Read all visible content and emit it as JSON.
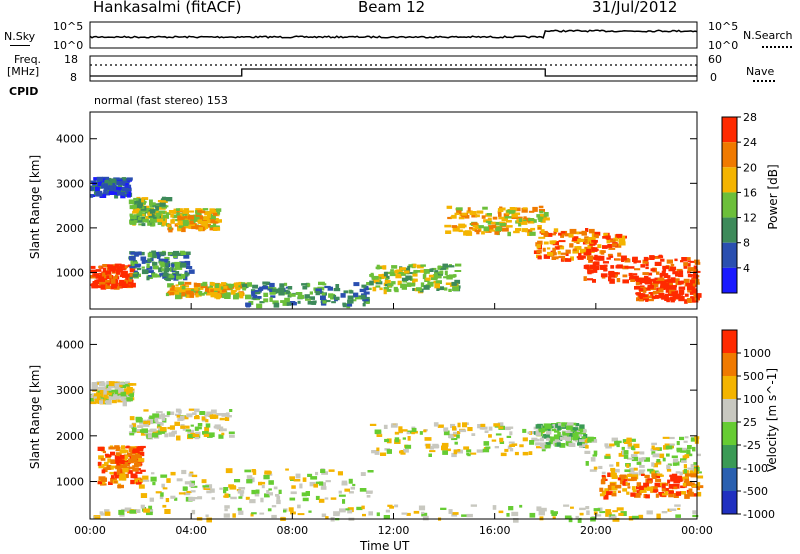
{
  "header": {
    "station": "Hankasalmi (fitACF)",
    "beam": "Beam 12",
    "date": "31/Jul/2012"
  },
  "top_panels": {
    "nsky_label": "N.Sky",
    "nsearch_label": "N.Search",
    "nsky_tick_high": "10^5",
    "nsky_tick_low": "10^0",
    "freq_label_1": "Freq.",
    "freq_label_2": "[MHz]",
    "freq_tick_high": "18",
    "freq_tick_low": "8",
    "nave_label": "Nave",
    "nave_tick_high": "60",
    "nave_tick_low": "0",
    "cpid_label": "CPID",
    "cpid_text": "normal (fast stereo) 153"
  },
  "chart_data": [
    {
      "type": "heatmap",
      "name": "power",
      "ylabel": "Slant Range [km]",
      "xlabel": "Time UT",
      "x_ticks": [
        "00:00",
        "04:00",
        "08:00",
        "12:00",
        "16:00",
        "20:00",
        "00:00"
      ],
      "xlim_hours": [
        0,
        24
      ],
      "y_ticks": [
        "1000",
        "2000",
        "3000",
        "4000"
      ],
      "ylim": [
        180,
        4600
      ],
      "colorbar_label": "Power [dB]",
      "colorbar_ticks": [
        "4",
        "8",
        "12",
        "16",
        "20",
        "24",
        "28"
      ],
      "colorbar_colors": [
        "#1a1aff",
        "#2a4fb0",
        "#3d8a5a",
        "#6cbf3a",
        "#f4b400",
        "#f07a00",
        "#ff2a00"
      ],
      "bands": [
        {
          "t0": 0.0,
          "t1": 1.5,
          "r0": 2750,
          "r1": 3150,
          "level": 1
        },
        {
          "t0": 1.5,
          "t1": 3.0,
          "r0": 2100,
          "r1": 2700,
          "level": 3
        },
        {
          "t0": 3.0,
          "t1": 5.0,
          "r0": 2000,
          "r1": 2450,
          "level": 4
        },
        {
          "t0": 0.0,
          "t1": 1.6,
          "r0": 700,
          "r1": 1200,
          "level": 6
        },
        {
          "t0": 1.5,
          "t1": 4.0,
          "r0": 900,
          "r1": 1500,
          "level": 2
        },
        {
          "t0": 3.0,
          "t1": 6.0,
          "r0": 500,
          "r1": 800,
          "level": 4
        },
        {
          "t0": 6.0,
          "t1": 11.0,
          "r0": 300,
          "r1": 800,
          "level": 2
        },
        {
          "t0": 11.0,
          "t1": 14.5,
          "r0": 600,
          "r1": 1200,
          "level": 3
        },
        {
          "t0": 14.0,
          "t1": 18.0,
          "r0": 1900,
          "r1": 2500,
          "level": 4
        },
        {
          "t0": 17.5,
          "t1": 21.0,
          "r0": 1300,
          "r1": 2000,
          "level": 5
        },
        {
          "t0": 19.5,
          "t1": 24.0,
          "r0": 800,
          "r1": 1400,
          "level": 6
        },
        {
          "t0": 21.5,
          "t1": 24.0,
          "r0": 400,
          "r1": 900,
          "level": 6
        }
      ]
    },
    {
      "type": "heatmap",
      "name": "velocity",
      "ylabel": "Slant Range [km]",
      "xlabel": "Time UT",
      "x_ticks": [
        "00:00",
        "04:00",
        "08:00",
        "12:00",
        "16:00",
        "20:00",
        "00:00"
      ],
      "xlim_hours": [
        0,
        24
      ],
      "y_ticks": [
        "1000",
        "2000",
        "3000",
        "4000"
      ],
      "ylim": [
        180,
        4600
      ],
      "colorbar_label": "Velocity [m s^-1]",
      "colorbar_ticks": [
        "1000",
        "500",
        "100",
        "25",
        "-25",
        "-100",
        "-500",
        "-1000"
      ],
      "colorbar_colors": [
        "#2030c0",
        "#2a60b0",
        "#3a9a55",
        "#66cc33",
        "#c8c8c0",
        "#f4b400",
        "#f07a00",
        "#ff2a00"
      ],
      "bands": [
        {
          "t0": 0.0,
          "t1": 1.6,
          "r0": 2750,
          "r1": 3200,
          "level": 4
        },
        {
          "t0": 1.5,
          "t1": 5.5,
          "r0": 2000,
          "r1": 2600,
          "level": 4
        },
        {
          "t0": 0.3,
          "t1": 2.0,
          "r0": 900,
          "r1": 1800,
          "level": 6
        },
        {
          "t0": 2.0,
          "t1": 11.0,
          "r0": 600,
          "r1": 1300,
          "level": 4
        },
        {
          "t0": 11.0,
          "t1": 18.0,
          "r0": 1600,
          "r1": 2300,
          "level": 4
        },
        {
          "t0": 17.5,
          "t1": 19.5,
          "r0": 1800,
          "r1": 2300,
          "level": 3
        },
        {
          "t0": 19.5,
          "t1": 24.0,
          "r0": 1200,
          "r1": 2000,
          "level": 4
        },
        {
          "t0": 20.0,
          "t1": 24.0,
          "r0": 700,
          "r1": 1200,
          "level": 6
        },
        {
          "t0": 0.0,
          "t1": 24.0,
          "r0": 200,
          "r1": 500,
          "level": 4
        }
      ]
    }
  ]
}
